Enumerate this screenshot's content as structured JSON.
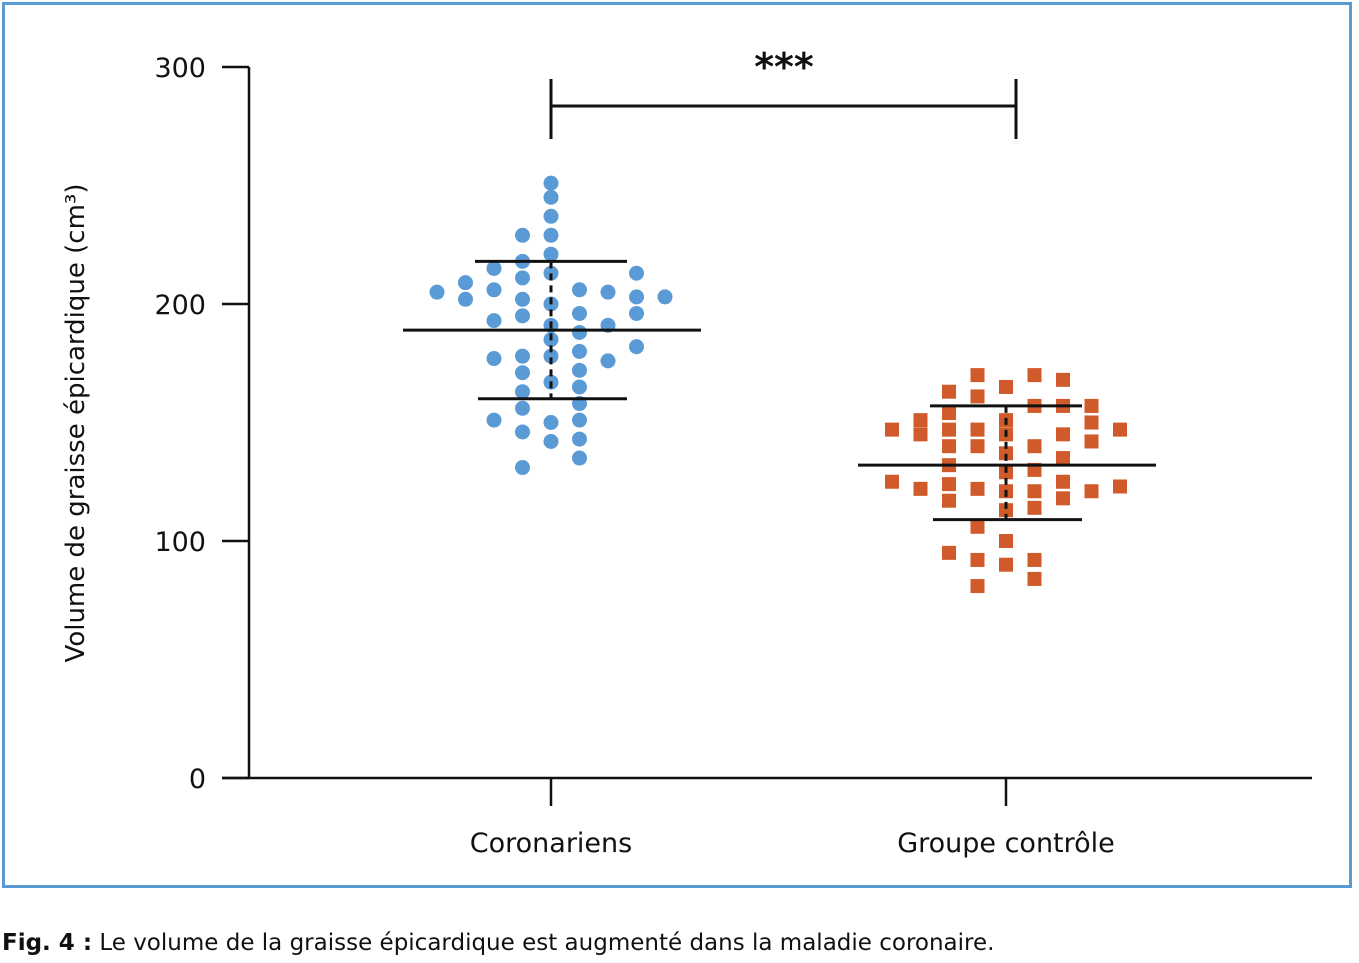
{
  "chart_data": {
    "type": "scatter",
    "ylabel": "Volume de graisse épicardique (cm³)",
    "ylim": [
      0,
      300
    ],
    "yticks": [
      "0",
      "100",
      "200",
      "300"
    ],
    "categories": [
      "Coronariens",
      "Groupe contrôle"
    ],
    "significance": "***",
    "series": [
      {
        "category": "Coronariens",
        "color": "#5b9bd5",
        "marker": "circle",
        "mean": 189,
        "sd_upper": 218,
        "sd_lower": 160,
        "points": [
          {
            "dx": -4,
            "y": 205
          },
          {
            "dx": -3,
            "y": 209
          },
          {
            "dx": -3,
            "y": 202
          },
          {
            "dx": -2,
            "y": 215
          },
          {
            "dx": -2,
            "y": 206
          },
          {
            "dx": -2,
            "y": 193
          },
          {
            "dx": -2,
            "y": 177
          },
          {
            "dx": -2,
            "y": 151
          },
          {
            "dx": -1,
            "y": 229
          },
          {
            "dx": -1,
            "y": 218
          },
          {
            "dx": -1,
            "y": 211
          },
          {
            "dx": -1,
            "y": 202
          },
          {
            "dx": -1,
            "y": 195
          },
          {
            "dx": -1,
            "y": 178
          },
          {
            "dx": -1,
            "y": 171
          },
          {
            "dx": -1,
            "y": 163
          },
          {
            "dx": -1,
            "y": 156
          },
          {
            "dx": -1,
            "y": 146
          },
          {
            "dx": -1,
            "y": 131
          },
          {
            "dx": 0,
            "y": 251
          },
          {
            "dx": 0,
            "y": 245
          },
          {
            "dx": 0,
            "y": 237
          },
          {
            "dx": 0,
            "y": 229
          },
          {
            "dx": 0,
            "y": 221
          },
          {
            "dx": 0,
            "y": 213
          },
          {
            "dx": 0,
            "y": 200
          },
          {
            "dx": 0,
            "y": 191
          },
          {
            "dx": 0,
            "y": 185
          },
          {
            "dx": 0,
            "y": 178
          },
          {
            "dx": 0,
            "y": 167
          },
          {
            "dx": 0,
            "y": 150
          },
          {
            "dx": 0,
            "y": 142
          },
          {
            "dx": 1,
            "y": 206
          },
          {
            "dx": 1,
            "y": 196
          },
          {
            "dx": 1,
            "y": 188
          },
          {
            "dx": 1,
            "y": 180
          },
          {
            "dx": 1,
            "y": 172
          },
          {
            "dx": 1,
            "y": 165
          },
          {
            "dx": 1,
            "y": 158
          },
          {
            "dx": 1,
            "y": 151
          },
          {
            "dx": 1,
            "y": 143
          },
          {
            "dx": 1,
            "y": 135
          },
          {
            "dx": 2,
            "y": 205
          },
          {
            "dx": 2,
            "y": 191
          },
          {
            "dx": 2,
            "y": 176
          },
          {
            "dx": 3,
            "y": 213
          },
          {
            "dx": 3,
            "y": 203
          },
          {
            "dx": 3,
            "y": 196
          },
          {
            "dx": 3,
            "y": 182
          },
          {
            "dx": 4,
            "y": 203
          }
        ]
      },
      {
        "category": "Groupe contrôle",
        "color": "#d05a2a",
        "marker": "square",
        "mean": 132,
        "sd_upper": 157,
        "sd_lower": 109,
        "points": [
          {
            "dx": -4,
            "y": 147
          },
          {
            "dx": -4,
            "y": 125
          },
          {
            "dx": -3,
            "y": 151
          },
          {
            "dx": -3,
            "y": 145
          },
          {
            "dx": -3,
            "y": 122
          },
          {
            "dx": -2,
            "y": 163
          },
          {
            "dx": -2,
            "y": 154
          },
          {
            "dx": -2,
            "y": 147
          },
          {
            "dx": -2,
            "y": 140
          },
          {
            "dx": -2,
            "y": 132
          },
          {
            "dx": -2,
            "y": 124
          },
          {
            "dx": -2,
            "y": 117
          },
          {
            "dx": -2,
            "y": 95
          },
          {
            "dx": -1,
            "y": 170
          },
          {
            "dx": -1,
            "y": 161
          },
          {
            "dx": -1,
            "y": 147
          },
          {
            "dx": -1,
            "y": 140
          },
          {
            "dx": -1,
            "y": 122
          },
          {
            "dx": -1,
            "y": 106
          },
          {
            "dx": -1,
            "y": 92
          },
          {
            "dx": -1,
            "y": 81
          },
          {
            "dx": 0,
            "y": 165
          },
          {
            "dx": 0,
            "y": 151
          },
          {
            "dx": 0,
            "y": 145
          },
          {
            "dx": 0,
            "y": 137
          },
          {
            "dx": 0,
            "y": 129
          },
          {
            "dx": 0,
            "y": 121
          },
          {
            "dx": 0,
            "y": 113
          },
          {
            "dx": 0,
            "y": 100
          },
          {
            "dx": 0,
            "y": 90
          },
          {
            "dx": 1,
            "y": 170
          },
          {
            "dx": 1,
            "y": 157
          },
          {
            "dx": 1,
            "y": 140
          },
          {
            "dx": 1,
            "y": 130
          },
          {
            "dx": 1,
            "y": 121
          },
          {
            "dx": 1,
            "y": 114
          },
          {
            "dx": 1,
            "y": 92
          },
          {
            "dx": 1,
            "y": 84
          },
          {
            "dx": 2,
            "y": 168
          },
          {
            "dx": 2,
            "y": 157
          },
          {
            "dx": 2,
            "y": 145
          },
          {
            "dx": 2,
            "y": 135
          },
          {
            "dx": 2,
            "y": 125
          },
          {
            "dx": 2,
            "y": 118
          },
          {
            "dx": 3,
            "y": 157
          },
          {
            "dx": 3,
            "y": 150
          },
          {
            "dx": 3,
            "y": 142
          },
          {
            "dx": 3,
            "y": 121
          },
          {
            "dx": 4,
            "y": 147
          },
          {
            "dx": 4,
            "y": 123
          }
        ]
      }
    ]
  },
  "caption": {
    "label": "Fig. 4 :",
    "text": " Le volume de la graisse épicardique est augmenté dans la maladie coronaire."
  }
}
